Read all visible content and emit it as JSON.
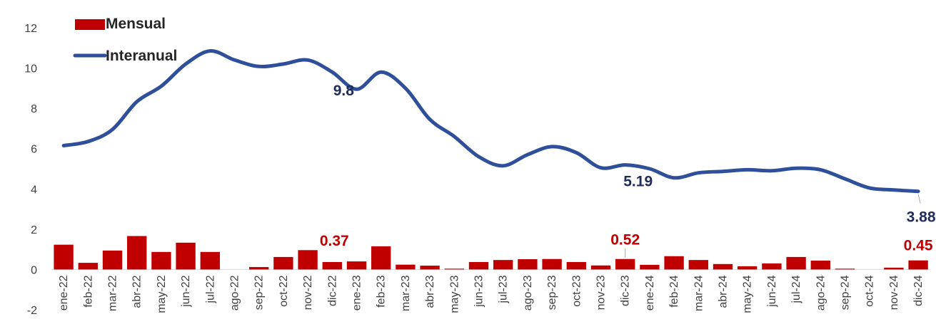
{
  "chart_data": {
    "type": "bar+line",
    "categories": [
      "ene-22",
      "feb-22",
      "mar-22",
      "abr-22",
      "may-22",
      "jun-22",
      "jul-22",
      "ago-22",
      "sep-22",
      "oct-22",
      "nov-22",
      "dic-22",
      "ene-23",
      "feb-23",
      "mar-23",
      "abr-23",
      "may-23",
      "jun-23",
      "jul-23",
      "ago-23",
      "sep-23",
      "oct-23",
      "nov-23",
      "dic-23",
      "ene-24",
      "feb-24",
      "mar-24",
      "abr-24",
      "may-24",
      "jun-24",
      "jul-24",
      "ago-24",
      "sep-24",
      "oct-24",
      "nov-24",
      "dic-24"
    ],
    "series": [
      {
        "name": "Mensual",
        "type": "bar",
        "color": "#c00000",
        "values": [
          1.23,
          0.33,
          0.94,
          1.66,
          0.87,
          1.33,
          0.87,
          0.0,
          0.12,
          0.62,
          0.96,
          0.37,
          0.4,
          1.15,
          0.24,
          0.19,
          0.04,
          0.37,
          0.47,
          0.51,
          0.52,
          0.37,
          0.2,
          0.52,
          0.23,
          0.66,
          0.47,
          0.27,
          0.16,
          0.3,
          0.62,
          0.44,
          0.04,
          0.0,
          0.09,
          0.45
        ]
      },
      {
        "name": "Interanual",
        "type": "line",
        "color": "#2f4f9a",
        "values": [
          6.15,
          6.35,
          6.95,
          8.33,
          9.1,
          10.2,
          10.85,
          10.4,
          10.08,
          10.2,
          10.4,
          9.8,
          8.95,
          9.8,
          9.0,
          7.45,
          6.6,
          5.6,
          5.15,
          5.7,
          6.1,
          5.8,
          5.05,
          5.19,
          5.0,
          4.55,
          4.8,
          4.87,
          4.95,
          4.9,
          5.03,
          4.95,
          4.5,
          4.05,
          3.95,
          3.88
        ]
      }
    ],
    "ylim": [
      -2,
      12
    ],
    "yticks": [
      "-2",
      "0",
      "2",
      "4",
      "6",
      "8",
      "10",
      "12"
    ],
    "legend_position": "top-left",
    "annotations": [
      {
        "text": "9.8",
        "series": "Interanual",
        "index": 11,
        "color": "#1f2d5c"
      },
      {
        "text": "5.19",
        "series": "Interanual",
        "index": 23,
        "color": "#1f2d5c"
      },
      {
        "text": "3.88",
        "series": "Interanual",
        "index": 35,
        "color": "#1f2d5c"
      },
      {
        "text": "0.37",
        "series": "Mensual",
        "index": 11,
        "color": "#c00000"
      },
      {
        "text": "0.52",
        "series": "Mensual",
        "index": 23,
        "color": "#c00000"
      },
      {
        "text": "0.45",
        "series": "Mensual",
        "index": 35,
        "color": "#c00000"
      }
    ]
  }
}
